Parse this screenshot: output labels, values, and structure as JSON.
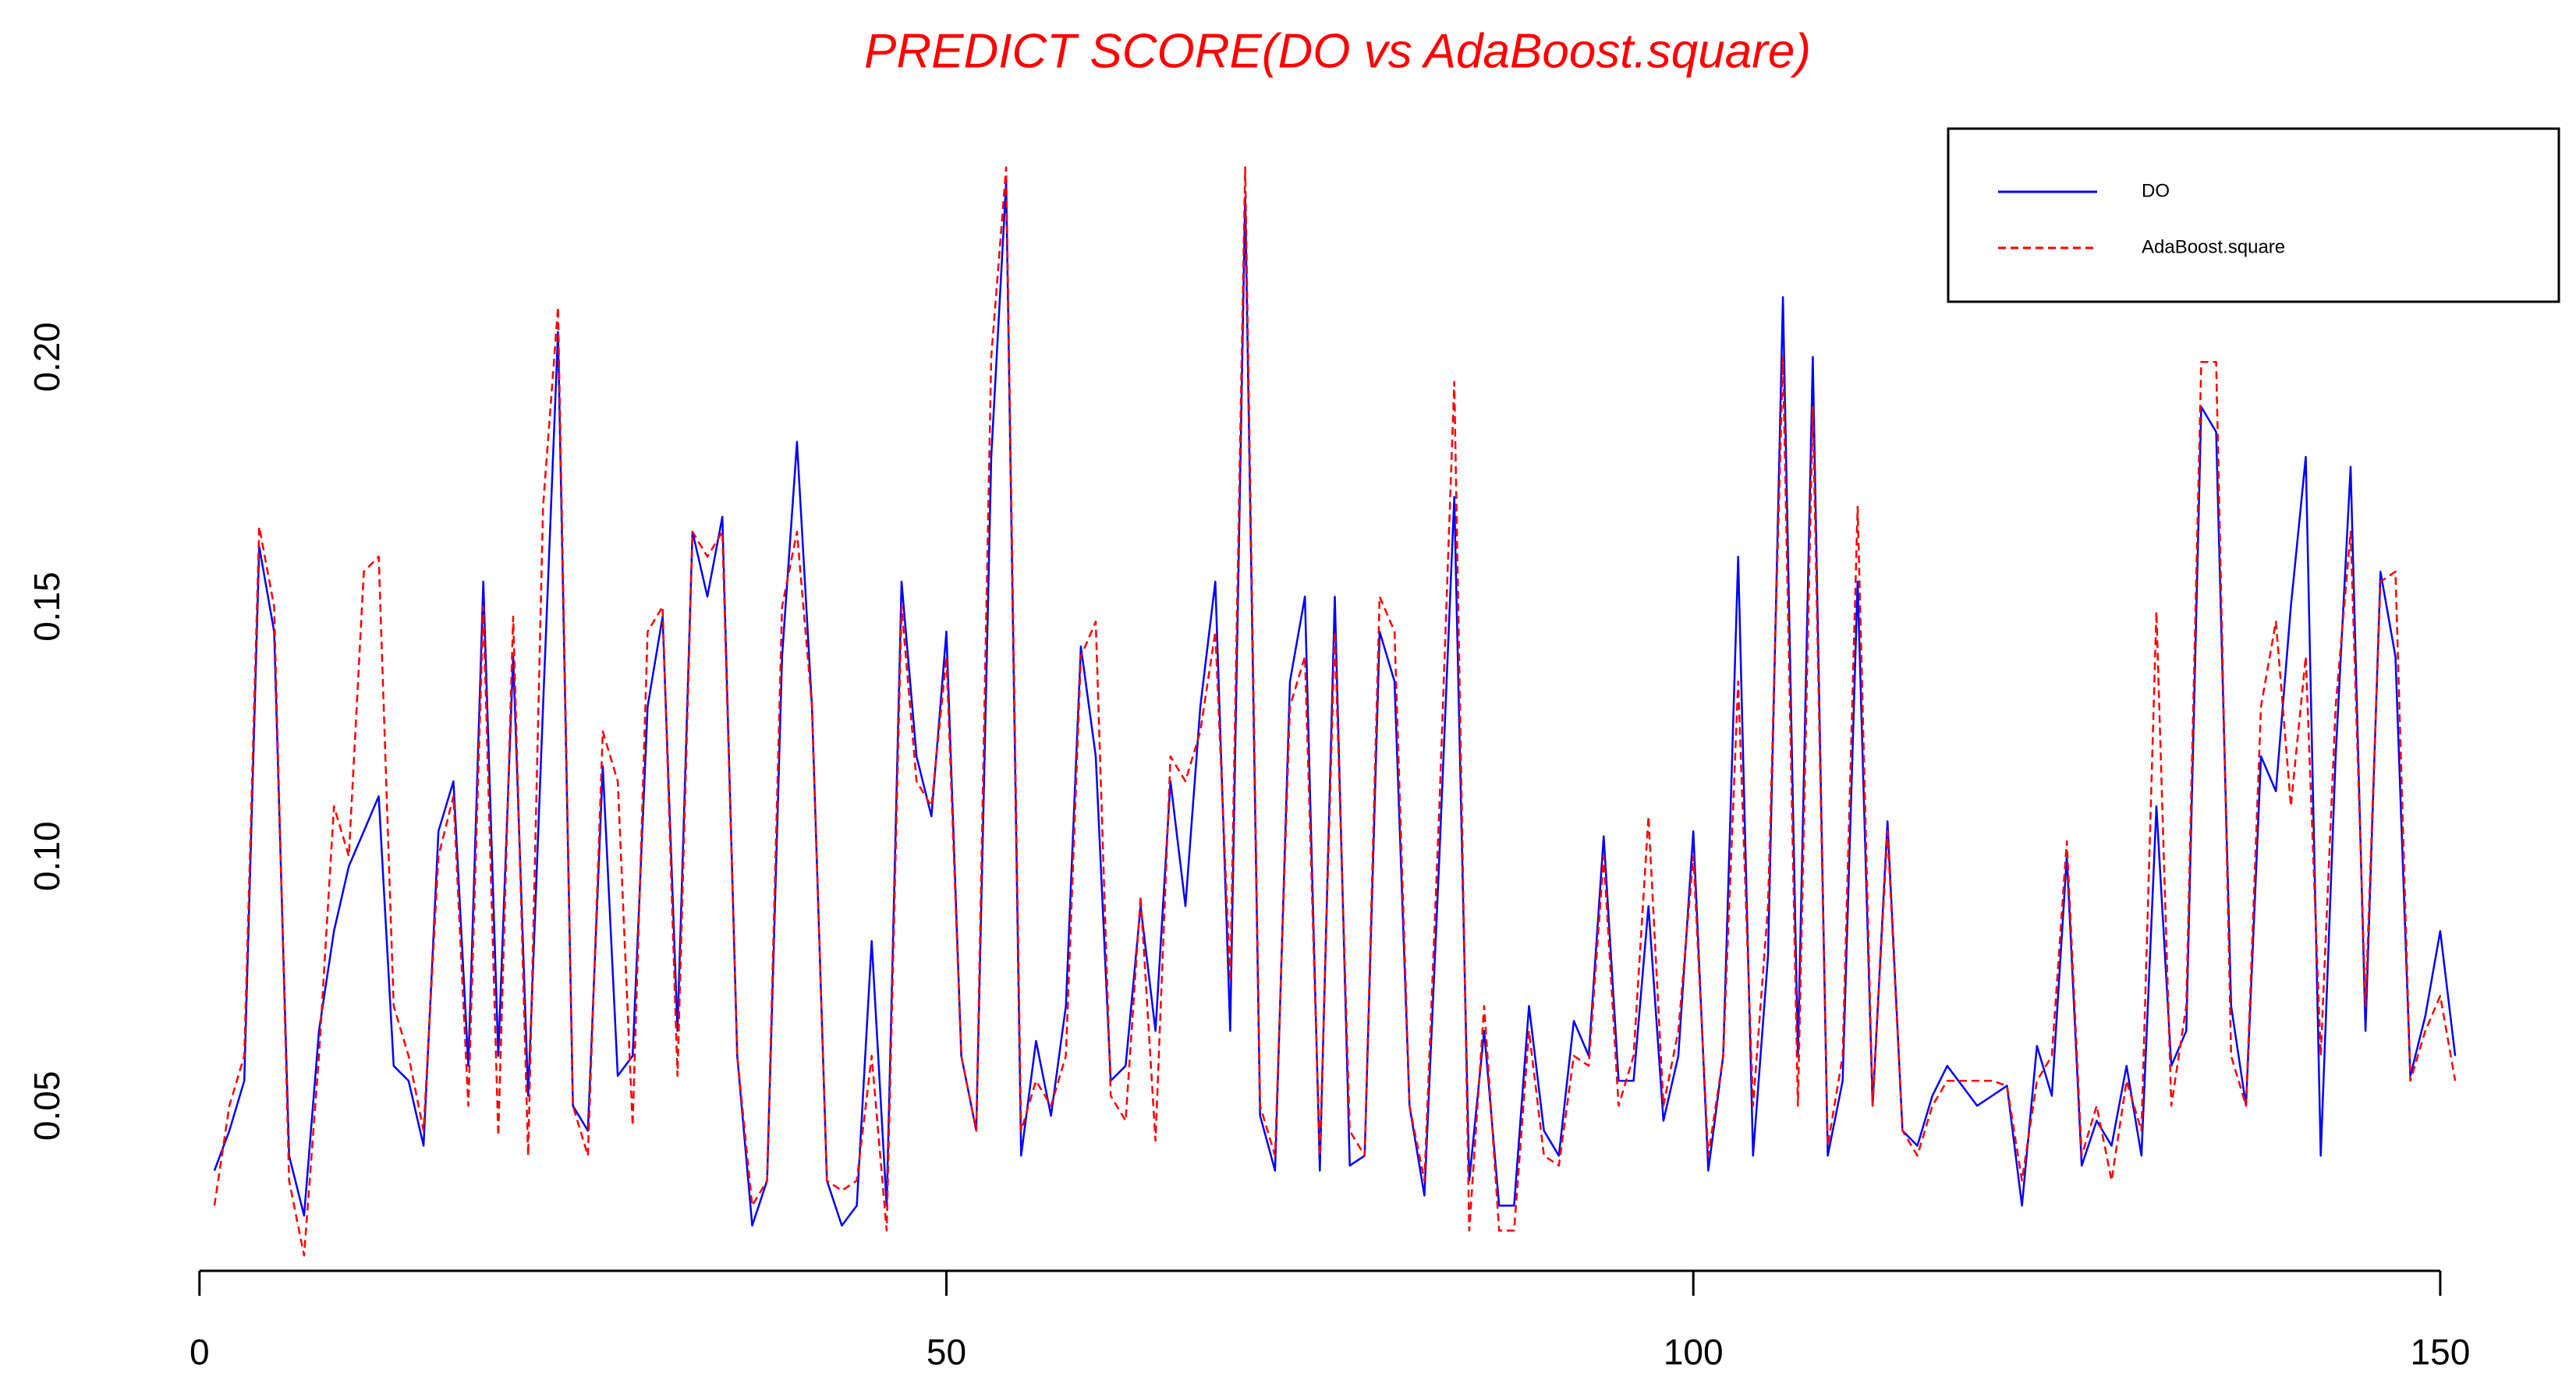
{
  "chart_data": {
    "type": "line",
    "title": "PREDICT SCORE(DO vs AdaBoost.square)",
    "x": [
      1,
      2,
      3,
      4,
      5,
      6,
      7,
      8,
      9,
      10,
      11,
      12,
      13,
      14,
      15,
      16,
      17,
      18,
      19,
      20,
      21,
      22,
      23,
      24,
      25,
      26,
      27,
      28,
      29,
      30,
      31,
      32,
      33,
      34,
      35,
      36,
      37,
      38,
      39,
      40,
      41,
      42,
      43,
      44,
      45,
      46,
      47,
      48,
      49,
      50,
      51,
      52,
      53,
      54,
      55,
      56,
      57,
      58,
      59,
      60,
      61,
      62,
      63,
      64,
      65,
      66,
      67,
      68,
      69,
      70,
      71,
      72,
      73,
      74,
      75,
      76,
      77,
      78,
      79,
      80,
      81,
      82,
      83,
      84,
      85,
      86,
      87,
      88,
      89,
      90,
      91,
      92,
      93,
      94,
      95,
      96,
      97,
      98,
      99,
      100,
      101,
      102,
      103,
      104,
      105,
      106,
      107,
      108,
      109,
      110,
      111,
      112,
      113,
      114,
      115,
      116,
      117,
      118,
      119,
      120,
      121,
      122,
      123,
      124,
      125,
      126,
      127,
      128,
      129,
      130,
      131,
      132,
      133,
      134,
      135,
      136,
      137,
      138,
      139,
      140,
      141,
      142,
      143,
      144,
      145,
      146,
      147,
      148,
      149,
      150,
      151
    ],
    "series": [
      {
        "name": "DO",
        "color": "#0000ff",
        "linestyle": "solid",
        "values": [
          0.037,
          0.045,
          0.055,
          0.162,
          0.145,
          0.04,
          0.028,
          0.065,
          0.085,
          0.098,
          0.105,
          0.112,
          0.058,
          0.055,
          0.042,
          0.105,
          0.115,
          0.058,
          0.155,
          0.06,
          0.14,
          0.052,
          0.13,
          0.205,
          0.05,
          0.045,
          0.118,
          0.056,
          0.06,
          0.13,
          0.148,
          0.065,
          0.165,
          0.152,
          0.168,
          0.06,
          0.026,
          0.035,
          0.14,
          0.183,
          0.13,
          0.035,
          0.026,
          0.03,
          0.083,
          0.03,
          0.155,
          0.12,
          0.108,
          0.145,
          0.06,
          0.045,
          0.18,
          0.235,
          0.04,
          0.063,
          0.048,
          0.07,
          0.142,
          0.12,
          0.055,
          0.058,
          0.09,
          0.065,
          0.115,
          0.09,
          0.13,
          0.155,
          0.065,
          0.232,
          0.048,
          0.037,
          0.135,
          0.152,
          0.037,
          0.152,
          0.038,
          0.04,
          0.145,
          0.135,
          0.05,
          0.032,
          0.1,
          0.172,
          0.035,
          0.065,
          0.03,
          0.03,
          0.07,
          0.045,
          0.04,
          0.067,
          0.06,
          0.104,
          0.055,
          0.055,
          0.09,
          0.047,
          0.06,
          0.105,
          0.037,
          0.06,
          0.16,
          0.04,
          0.08,
          0.212,
          0.06,
          0.2,
          0.04,
          0.055,
          0.155,
          0.05,
          0.107,
          0.045,
          0.042,
          0.052,
          0.058,
          0.054,
          0.05,
          0.052,
          0.054,
          0.03,
          0.062,
          0.052,
          0.1,
          0.038,
          0.047,
          0.042,
          0.058,
          0.04,
          0.11,
          0.058,
          0.065,
          0.19,
          0.185,
          0.07,
          0.05,
          0.12,
          0.113,
          0.15,
          0.18,
          0.04,
          0.12,
          0.178,
          0.065,
          0.157,
          0.14,
          0.056,
          0.068,
          0.085,
          0.06
        ]
      },
      {
        "name": "AdaBoost.square",
        "color": "#ff0000",
        "linestyle": "dashed",
        "values": [
          0.03,
          0.05,
          0.06,
          0.166,
          0.15,
          0.035,
          0.02,
          0.06,
          0.11,
          0.1,
          0.157,
          0.16,
          0.07,
          0.06,
          0.045,
          0.1,
          0.112,
          0.05,
          0.15,
          0.044,
          0.148,
          0.04,
          0.17,
          0.21,
          0.05,
          0.04,
          0.125,
          0.115,
          0.046,
          0.145,
          0.15,
          0.056,
          0.165,
          0.16,
          0.165,
          0.06,
          0.03,
          0.035,
          0.15,
          0.165,
          0.13,
          0.035,
          0.033,
          0.035,
          0.06,
          0.025,
          0.15,
          0.115,
          0.11,
          0.14,
          0.06,
          0.045,
          0.2,
          0.238,
          0.045,
          0.055,
          0.05,
          0.06,
          0.14,
          0.147,
          0.052,
          0.047,
          0.092,
          0.043,
          0.12,
          0.115,
          0.125,
          0.145,
          0.075,
          0.238,
          0.05,
          0.04,
          0.13,
          0.14,
          0.04,
          0.145,
          0.045,
          0.04,
          0.152,
          0.145,
          0.05,
          0.035,
          0.11,
          0.195,
          0.025,
          0.07,
          0.025,
          0.025,
          0.065,
          0.04,
          0.038,
          0.06,
          0.058,
          0.1,
          0.05,
          0.06,
          0.108,
          0.05,
          0.065,
          0.1,
          0.04,
          0.06,
          0.135,
          0.05,
          0.09,
          0.2,
          0.05,
          0.19,
          0.042,
          0.06,
          0.17,
          0.05,
          0.105,
          0.045,
          0.04,
          0.05,
          0.055,
          0.055,
          0.055,
          0.055,
          0.054,
          0.035,
          0.055,
          0.06,
          0.103,
          0.04,
          0.05,
          0.035,
          0.055,
          0.045,
          0.149,
          0.05,
          0.07,
          0.199,
          0.199,
          0.06,
          0.05,
          0.13,
          0.147,
          0.11,
          0.14,
          0.06,
          0.13,
          0.165,
          0.07,
          0.155,
          0.157,
          0.055,
          0.065,
          0.072,
          0.055
        ]
      }
    ],
    "xlim": [
      -5,
      157
    ],
    "xticks": [
      0,
      50,
      100,
      150
    ],
    "ylim": [
      0.011,
      0.247
    ],
    "yticks": [
      0.05,
      {
        "value": 0.1,
        "label": "0.10"
      },
      0.15,
      {
        "value": 0.2,
        "label": "0.20"
      }
    ],
    "legend": "top-right",
    "grid": false
  }
}
